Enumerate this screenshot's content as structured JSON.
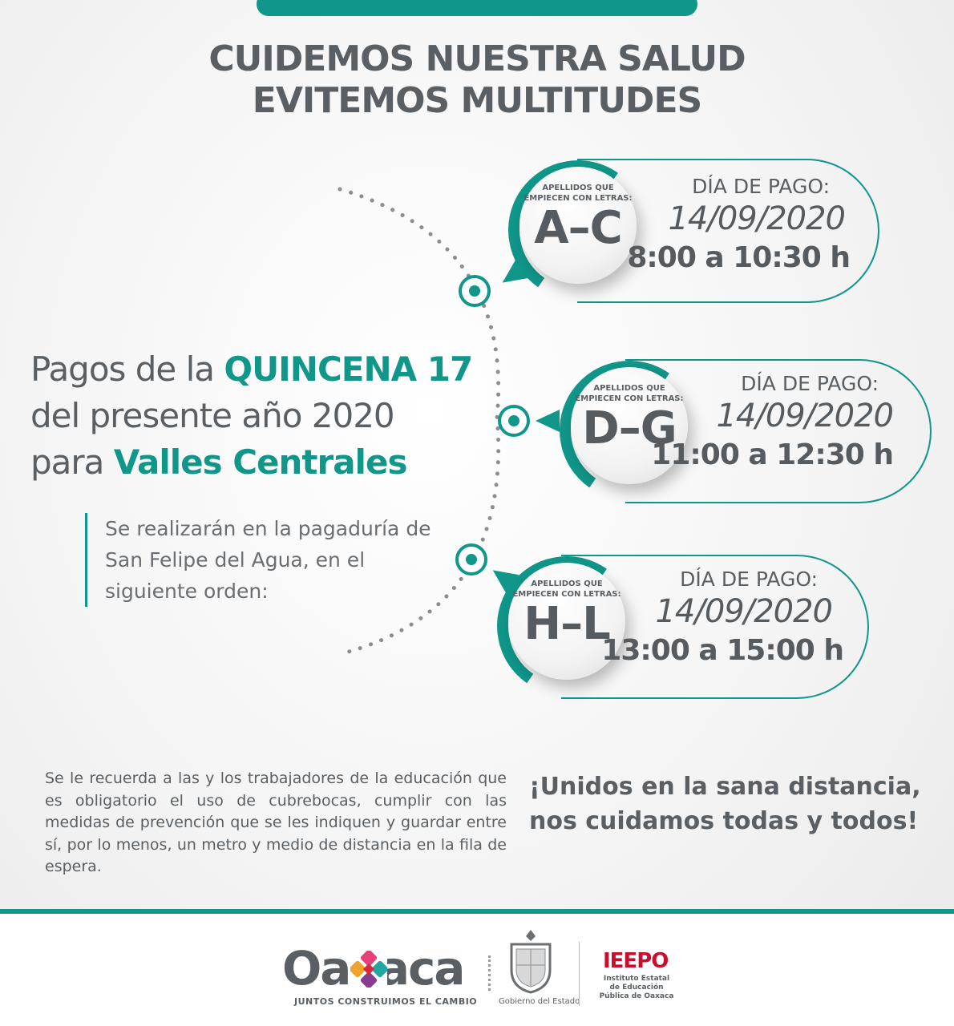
{
  "headline": {
    "line1": "CUIDEMOS NUESTRA SALUD",
    "line2": "EVITEMOS MULTITUDES"
  },
  "main_title": {
    "line1_prefix": "Pagos de la ",
    "line1_accent": "QUINCENA 17",
    "line2": "del presente año 2020",
    "line3_prefix": "para ",
    "line3_accent": "Valles Centrales"
  },
  "intro": "Se realizarán en la pagaduría de San Felipe del Agua, en el siguiente orden:",
  "groups": [
    {
      "caption": "APELLIDOS QUE EMPIECEN CON LETRAS:",
      "letters": "A–C",
      "label": "DÍA DE PAGO:",
      "date": "14/09/2020",
      "time": "8:00 a 10:30 h"
    },
    {
      "caption": "APELLIDOS QUE EMPIECEN CON LETRAS:",
      "letters": "D–G",
      "label": "DÍA DE PAGO:",
      "date": "14/09/2020",
      "time": "11:00 a 12:30 h"
    },
    {
      "caption": "APELLIDOS QUE EMPIECEN CON LETRAS:",
      "letters": "H–L",
      "label": "DÍA DE PAGO:",
      "date": "14/09/2020",
      "time": "13:00 a 15:00 h"
    }
  ],
  "reminder": "Se le recuerda a las y los trabajadores de la educación que es obligatorio el uso de cubrebocas, cumplir con las medidas de prevención que se les indiquen y guardar entre sí, por lo menos, un metro y medio de distancia en la fila de espera.",
  "slogan": {
    "line1": "¡Unidos en la sana distancia,",
    "line2": "nos cuidamos todas y todos!"
  },
  "footer": {
    "oaxaca_word": "Oaxaca",
    "oaxaca_slogan": "JUNTOS CONSTRUIMOS EL CAMBIO",
    "gobierno_label": "Gobierno del Estado",
    "ieepo": "IEEPO",
    "ieepo_sub": "Instituto Estatal de Educación Pública de Oaxaca"
  },
  "colors": {
    "accent": "#10978a",
    "text": "#5a5f63",
    "ieepo_red": "#c8102e"
  }
}
